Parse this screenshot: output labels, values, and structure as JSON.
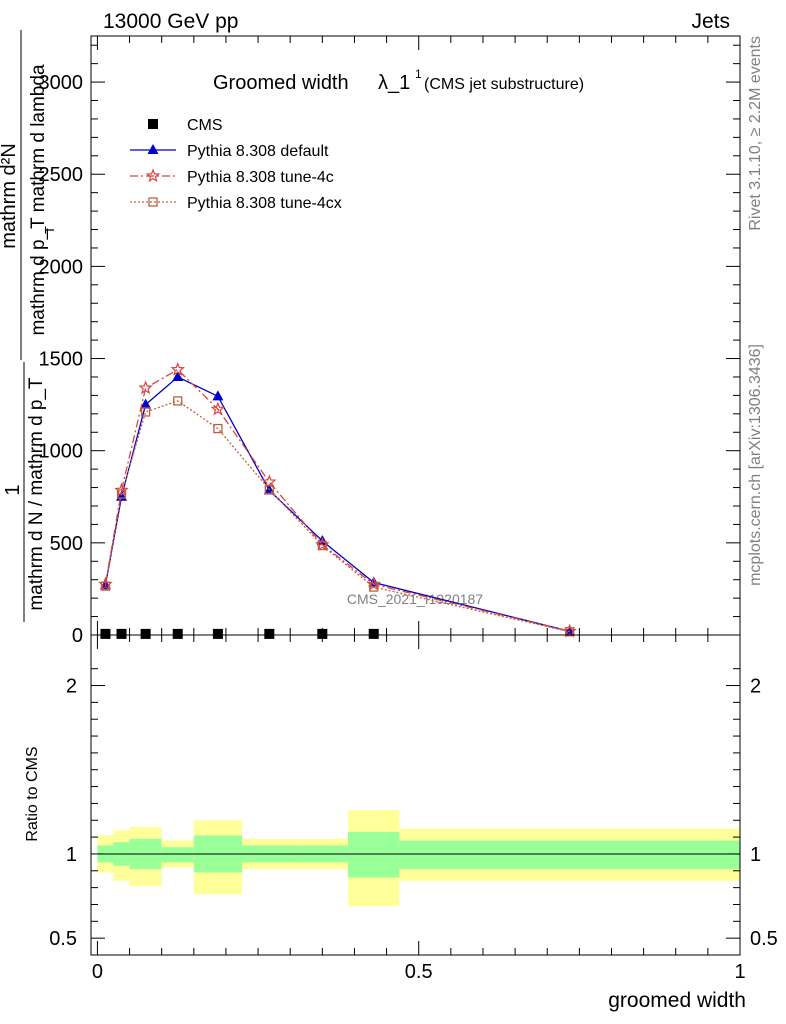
{
  "header": {
    "left": "13000 GeV pp",
    "right": "Jets"
  },
  "side_text": {
    "rivet": "Rivet 3.1.10, ≥ 2.2M events",
    "mcplots": "mcplots.cern.ch [arXiv:1306.3436]"
  },
  "chart_data": [
    {
      "type": "line",
      "title_main": "Groomed width",
      "title_lambda": "λ_1",
      "title_sup": "1",
      "title_sub": "(CMS jet substructure)",
      "ylabel_fraction_top": "mathrm d²N",
      "ylabel_fraction_bottom": "mathrm d p_T mathrm d lambda",
      "ylabel_prefix_top": "1",
      "ylabel_prefix_bottom": "mathrm d N / mathrm d p_T",
      "ylabel_sub": "T",
      "ylim": [
        0,
        3250
      ],
      "xlim": [
        -0.01,
        1.0
      ],
      "y_ticks": [
        0,
        500,
        1000,
        1500,
        2000,
        2500,
        3000
      ],
      "y_tick_labels": [
        "0",
        "500",
        "1000",
        "1500",
        "2000",
        "2500",
        "3000"
      ],
      "watermark": "CMS_2021_I1920187",
      "legend_position": "top-left",
      "series": [
        {
          "name": "CMS",
          "color": "#000000",
          "marker": "square",
          "x": [
            0.0125,
            0.0375,
            0.075,
            0.125,
            0.1875,
            0.2675,
            0.35,
            0.43
          ],
          "y": [
            6,
            6,
            6,
            6,
            6,
            6,
            6,
            6
          ]
        },
        {
          "name": "Pythia 8.308 default",
          "color": "#0000cc",
          "marker": "triangle",
          "x": [
            0.0125,
            0.0375,
            0.075,
            0.125,
            0.1875,
            0.2675,
            0.35,
            0.43,
            0.735
          ],
          "y": [
            270,
            750,
            1250,
            1400,
            1295,
            785,
            510,
            285,
            20
          ]
        },
        {
          "name": "Pythia 8.308 tune-4c",
          "color": "#e04040",
          "marker": "star",
          "x": [
            0.0125,
            0.0375,
            0.075,
            0.125,
            0.1875,
            0.2675,
            0.35,
            0.43,
            0.735
          ],
          "y": [
            275,
            785,
            1340,
            1440,
            1225,
            830,
            490,
            275,
            20
          ]
        },
        {
          "name": "Pythia 8.308 tune-4cx",
          "color": "#c0603a",
          "marker": "open-square",
          "x": [
            0.0125,
            0.0375,
            0.075,
            0.125,
            0.1875,
            0.2675,
            0.35,
            0.43,
            0.735
          ],
          "y": [
            265,
            765,
            1210,
            1270,
            1120,
            790,
            485,
            260,
            18
          ]
        }
      ]
    },
    {
      "type": "area",
      "ylabel": "Ratio to CMS",
      "xlabel": "groomed width",
      "ylim": [
        0.4,
        2.3
      ],
      "xlim": [
        -0.01,
        1.0
      ],
      "y_ticks": [
        0.5,
        1,
        2
      ],
      "y_tick_labels": [
        "0.5",
        "1",
        "2"
      ],
      "x_ticks": [
        0,
        0.5,
        1
      ],
      "x_tick_labels": [
        "0",
        "0.5",
        "1"
      ],
      "bands": [
        {
          "x0": 0.0,
          "x1": 0.025,
          "inner": [
            0.95,
            1.05
          ],
          "outer": [
            0.89,
            1.11
          ]
        },
        {
          "x0": 0.025,
          "x1": 0.05,
          "inner": [
            0.93,
            1.07
          ],
          "outer": [
            0.84,
            1.14
          ]
        },
        {
          "x0": 0.05,
          "x1": 0.1,
          "inner": [
            0.91,
            1.09
          ],
          "outer": [
            0.81,
            1.16
          ]
        },
        {
          "x0": 0.1,
          "x1": 0.15,
          "inner": [
            0.95,
            1.04
          ],
          "outer": [
            0.92,
            1.08
          ]
        },
        {
          "x0": 0.15,
          "x1": 0.225,
          "inner": [
            0.89,
            1.11
          ],
          "outer": [
            0.76,
            1.2
          ]
        },
        {
          "x0": 0.225,
          "x1": 0.31,
          "inner": [
            0.95,
            1.05
          ],
          "outer": [
            0.91,
            1.09
          ]
        },
        {
          "x0": 0.31,
          "x1": 0.39,
          "inner": [
            0.95,
            1.05
          ],
          "outer": [
            0.91,
            1.09
          ]
        },
        {
          "x0": 0.39,
          "x1": 0.47,
          "inner": [
            0.86,
            1.13
          ],
          "outer": [
            0.69,
            1.26
          ]
        },
        {
          "x0": 0.47,
          "x1": 1.0,
          "inner": [
            0.91,
            1.08
          ],
          "outer": [
            0.84,
            1.15
          ]
        }
      ],
      "inner_color": "#99ff99",
      "outer_color": "#ffff99",
      "reference": 1
    }
  ]
}
